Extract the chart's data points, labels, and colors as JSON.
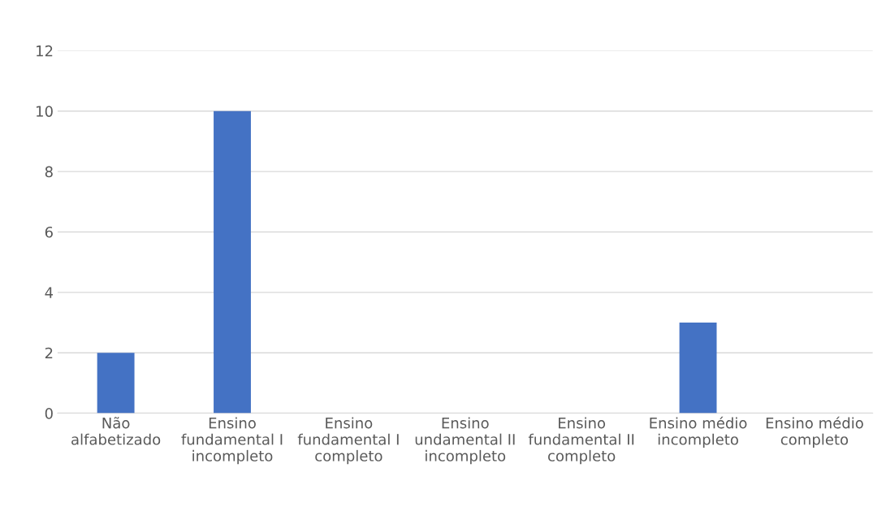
{
  "chart_data": {
    "type": "bar",
    "categories": [
      "Não\nalfabetizado",
      "Ensino\nfundamental I\nincompleto",
      "Ensino\nfundamental I\ncompleto",
      "Ensino\nundamental II\nincompleto",
      "Ensino\nfundamental II\ncompleto",
      "Ensino médio\nincompleto",
      "Ensino médio\ncompleto"
    ],
    "values": [
      2,
      10,
      0,
      0,
      0,
      3,
      0
    ],
    "color": "#4472c4",
    "ylim": [
      0,
      12
    ],
    "yticks": [
      0,
      2,
      4,
      6,
      8,
      10,
      12
    ],
    "grid": "y",
    "legend": false
  }
}
